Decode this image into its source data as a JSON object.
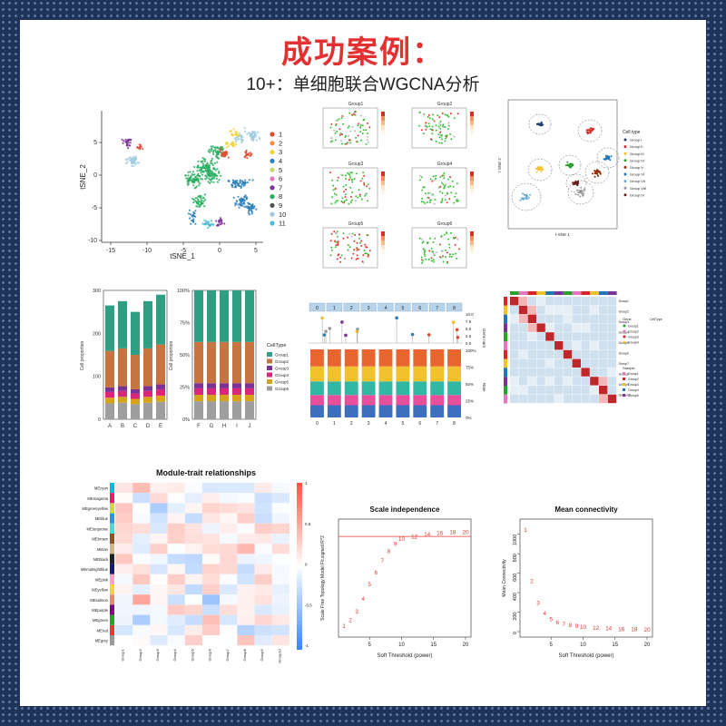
{
  "title": "成功案例：",
  "subtitle": "10+：单细胞联合WGCNA分析",
  "colors": {
    "cluster": [
      "#e34a33",
      "#ff8c42",
      "#f2d43b",
      "#2c7fb8",
      "#c9d96b",
      "#e377c2",
      "#7b3294",
      "#27ae60",
      "#555555",
      "#9ecae1",
      "#4dbbd5"
    ]
  },
  "tsne": {
    "xlabel": "tSNE_1",
    "ylabel": "tSNE_2",
    "x_ticks": [
      "-15",
      "-10",
      "-5",
      "0",
      "5"
    ],
    "y_ticks": [
      "5",
      "0",
      "-5",
      "-10"
    ],
    "legend": [
      "1",
      "2",
      "3",
      "4",
      "5",
      "6",
      "7",
      "8",
      "9",
      "10",
      "11"
    ]
  },
  "groups_grid": {
    "titles": [
      "Group1",
      "Group2",
      "Group3",
      "Group4",
      "Group5",
      "Group6"
    ]
  },
  "celltype_scatter": {
    "legend_title": "Cell type",
    "legend": [
      "Group I",
      "Group II",
      "Group III",
      "Group IV",
      "Group V",
      "Group VI",
      "Group VII",
      "Group VIII",
      "Group IX"
    ],
    "xlabel": "t-SNE 1",
    "ylabel": "t-SNE 2"
  },
  "chart_data": [
    {
      "type": "bar",
      "title": "",
      "ylabel": "Cell proportion",
      "categories": [
        "A",
        "B",
        "C",
        "D",
        "E"
      ],
      "y_ticks": [
        "0",
        "100",
        "200",
        "300"
      ],
      "ylim": [
        0,
        300
      ],
      "totals": [
        265,
        275,
        250,
        275,
        290
      ],
      "stack_fractions": [
        0.14,
        0.05,
        0.05,
        0.04,
        0.32,
        0.4
      ],
      "series_names": [
        "Group6",
        "Group5",
        "Group4",
        "Group3",
        "Group2",
        "Group1"
      ]
    },
    {
      "type": "bar",
      "title": "",
      "ylabel": "Cell proportion",
      "categories": [
        "F",
        "G",
        "H",
        "I",
        "J"
      ],
      "y_ticks": [
        "0%",
        "25%",
        "50%",
        "75%",
        "100%"
      ],
      "ylim": [
        0,
        100
      ],
      "totals": [
        100,
        100,
        100,
        100,
        100
      ],
      "stack_fractions": [
        0.14,
        0.05,
        0.05,
        0.04,
        0.32,
        0.4
      ],
      "legend_title": "CellType",
      "legend": [
        "Group1",
        "Group2",
        "Group3",
        "Group4",
        "Group5",
        "Group6"
      ]
    },
    {
      "type": "heatmap",
      "title": "Module-trait relationships",
      "rows": [
        "MEcyan",
        "MEmagenta",
        "MEgreenyellow",
        "MEblue",
        "MEturquoise",
        "MEbrown",
        "MEtan",
        "MEblack",
        "MEmidnightblue",
        "MEpink",
        "MEyellow",
        "MEsalmon",
        "MEpurple",
        "MEgreen",
        "MEred",
        "MEgrey"
      ],
      "columns": [
        "Group1",
        "Group2",
        "Group3",
        "Group4",
        "Group5",
        "Group6",
        "Group7",
        "Group8",
        "Group9",
        "Group10"
      ],
      "scale_ticks": [
        "1",
        "0.5",
        "0",
        "-0.5",
        "-1"
      ]
    },
    {
      "type": "scatter",
      "title": "Scale independence",
      "xlabel": "Soft Threshold (power)",
      "ylabel": "Scale Free Topology Model Fit,signed R^2",
      "x": [
        1,
        2,
        3,
        4,
        5,
        6,
        7,
        8,
        9,
        10,
        12,
        14,
        16,
        18,
        20
      ],
      "y": [
        0.05,
        0.1,
        0.17,
        0.28,
        0.4,
        0.5,
        0.6,
        0.68,
        0.74,
        0.78,
        0.8,
        0.82,
        0.83,
        0.84,
        0.84
      ],
      "labels": [
        "1",
        "2",
        "3",
        "4",
        "5",
        "6",
        "7",
        "8",
        "9",
        "10",
        "12",
        "14",
        "16",
        "18",
        "20"
      ],
      "xlim": [
        1,
        20
      ],
      "ylim": [
        0,
        0.9
      ],
      "x_ticks": [
        "5",
        "10",
        "15",
        "20"
      ],
      "hline": 0.8
    },
    {
      "type": "scatter",
      "title": "Mean connectivity",
      "xlabel": "Soft Threshold (power)",
      "ylabel": "Mean Connectivity",
      "x": [
        1,
        2,
        3,
        4,
        5,
        6,
        7,
        8,
        9,
        10,
        12,
        14,
        16,
        18,
        20
      ],
      "y": [
        1050,
        520,
        300,
        190,
        130,
        100,
        80,
        70,
        60,
        50,
        40,
        35,
        30,
        28,
        25
      ],
      "labels": [
        "1",
        "2",
        "3",
        "4",
        "5",
        "6",
        "7",
        "8",
        "9",
        "10",
        "12",
        "14",
        "16",
        "18",
        "20"
      ],
      "xlim": [
        1,
        20
      ],
      "ylim": [
        0,
        1100
      ],
      "x_ticks": [
        "5",
        "10",
        "15",
        "20"
      ],
      "y_ticks": [
        "0",
        "200",
        "400",
        "600",
        "800",
        "1000"
      ]
    }
  ],
  "lollipop": {
    "columns": [
      "0",
      "1",
      "2",
      "3",
      "4",
      "5",
      "6",
      "7",
      "8"
    ],
    "right_axis": [
      "10.0",
      "7.5",
      "5.0",
      "2.5",
      "0.0"
    ],
    "right_label": "Gene num",
    "pct": [
      "100%",
      "75%",
      "50%",
      "25%",
      "0%"
    ],
    "pct_label": "Rate"
  },
  "corr_map": {
    "legend1_title": "Gene",
    "legend1": [
      "Group1",
      "Group2",
      "Group3",
      "Group4"
    ],
    "legend2_title": "Sample",
    "legend2": [
      "Group1",
      "Group2",
      "Group3",
      "Group4",
      "Group5"
    ],
    "legend3_title": "CellType",
    "rows": [
      "Group1",
      "Group2",
      "Group3",
      "Group4",
      "Group5",
      "Group6",
      "Group7",
      "Group8",
      "Group9",
      "Group10"
    ]
  }
}
